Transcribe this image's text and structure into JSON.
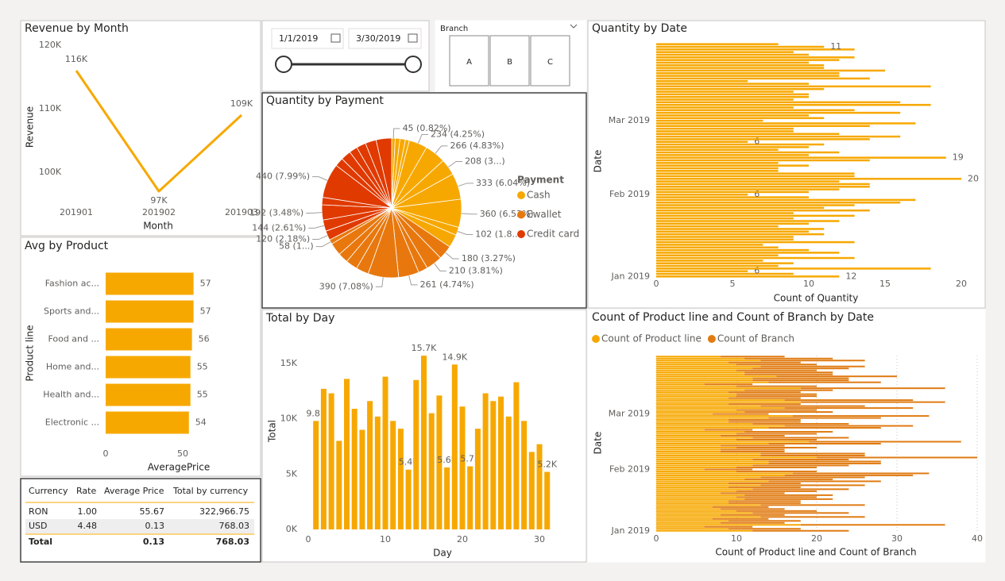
{
  "chart_data": [
    {
      "type": "line",
      "title": "Revenue by Month",
      "categories": [
        "201901",
        "201902",
        "201903"
      ],
      "values": [
        116000,
        97000,
        109000
      ],
      "value_labels": [
        "116K",
        "97K",
        "109K"
      ],
      "color": "#F7A800",
      "ylim": [
        95000,
        121000
      ],
      "yticks": [
        {
          "value": 100000,
          "label": "100K"
        },
        {
          "value": 110000,
          "label": "110K"
        },
        {
          "value": 120000,
          "label": "120K"
        }
      ],
      "xlabel": "Month",
      "ylabel": "Revenue"
    },
    {
      "type": "bar",
      "horizontal": true,
      "title": "Avg by Product",
      "categories": [
        "Fashion ac...",
        "Sports and...",
        "Food and ...",
        "Home and...",
        "Health and...",
        "Electronic ..."
      ],
      "values": [
        57,
        57,
        56,
        55,
        55,
        54
      ],
      "color": "#F7A800",
      "xlim": [
        0,
        60
      ],
      "xticks": [
        0,
        50
      ],
      "data_labels": true,
      "xlabel": "AveragePrice",
      "ylabel": "Product line"
    },
    {
      "type": "pie",
      "title": "Quantity by Payment",
      "legend_title": "Payment",
      "series": [
        {
          "name": "Cash",
          "color": "#F7A800",
          "values": [
            45,
            60,
            70,
            50,
            234,
            266,
            208,
            333,
            360,
            102,
            168
          ],
          "value_labels": [
            "45 (0.82%)",
            null,
            null,
            null,
            "234 (4.25%)",
            "266 (4.83%)",
            "208 (3...)",
            "333 (6.04%)",
            "360 (6.53%)",
            "102 (1.8...)",
            null
          ]
        },
        {
          "name": "Ewallet",
          "color": "#E8780E",
          "values": [
            180,
            210,
            120,
            261,
            390,
            160,
            150,
            130,
            161,
            58
          ],
          "value_labels": [
            "180 (3.27%)",
            "210 (3.81%)",
            null,
            "261 (4.74%)",
            "390 (7.08%)",
            null,
            null,
            null,
            null,
            "58 (1...)"
          ]
        },
        {
          "name": "Credit card",
          "color": "#E03A00",
          "values": [
            120,
            144,
            192,
            95,
            440,
            110,
            130,
            105,
            120,
            140,
            198
          ],
          "value_labels": [
            "120 (2.18%)",
            "144 (2.61%)",
            "192 (3.48%)",
            null,
            "440 (7.99%)",
            null,
            null,
            null,
            null,
            null,
            null
          ]
        }
      ]
    },
    {
      "type": "bar",
      "title": "Total by Day",
      "x": [
        1,
        2,
        3,
        4,
        5,
        6,
        7,
        8,
        9,
        10,
        11,
        12,
        13,
        14,
        15,
        16,
        17,
        18,
        19,
        20,
        21,
        22,
        23,
        24,
        25,
        26,
        27,
        28,
        29,
        30,
        31
      ],
      "values": [
        9800,
        12700,
        12300,
        8000,
        13600,
        10900,
        9000,
        11600,
        10200,
        13800,
        9800,
        9100,
        5400,
        13500,
        15700,
        10500,
        12100,
        5600,
        14900,
        11100,
        5700,
        9100,
        12300,
        11600,
        12000,
        10200,
        13300,
        9800,
        7000,
        7700,
        5200
      ],
      "value_labels": [
        "9.8K",
        null,
        null,
        null,
        null,
        null,
        null,
        null,
        null,
        null,
        null,
        null,
        "5.4K",
        null,
        "15.7K",
        null,
        null,
        "5.6K",
        "14.9K",
        null,
        "5.7K",
        null,
        null,
        null,
        null,
        null,
        null,
        null,
        null,
        null,
        "5.2K"
      ],
      "color": "#F7A800",
      "xlim": [
        0,
        32
      ],
      "xticks": [
        0,
        10,
        20,
        30
      ],
      "ylim": [
        0,
        17500
      ],
      "yticks": [
        {
          "value": 0,
          "label": "0K"
        },
        {
          "value": 5000,
          "label": "5K"
        },
        {
          "value": 10000,
          "label": "10K"
        },
        {
          "value": 15000,
          "label": "15K"
        }
      ],
      "xlabel": "Day",
      "ylabel": "Total"
    },
    {
      "type": "bar",
      "horizontal": true,
      "title": "Quantity by Date",
      "categories": [
        "Jan 2019",
        null,
        null,
        null,
        null,
        null,
        null,
        null,
        null,
        null,
        null,
        null,
        null,
        null,
        null,
        null,
        null,
        null,
        null,
        null,
        null,
        null,
        null,
        null,
        null,
        null,
        null,
        null,
        null,
        null,
        null,
        "Feb 2019",
        null,
        null,
        null,
        null,
        null,
        null,
        null,
        null,
        null,
        null,
        null,
        null,
        null,
        null,
        null,
        null,
        null,
        null,
        null,
        null,
        null,
        null,
        null,
        null,
        null,
        null,
        null,
        "Mar 2019",
        null,
        null,
        null,
        null,
        null,
        null,
        null,
        null,
        null,
        null,
        null,
        null,
        null,
        null,
        null,
        null,
        null,
        null,
        null,
        null,
        null,
        null,
        null,
        null,
        null,
        null,
        null,
        null,
        null
      ],
      "values": [
        12,
        9,
        6,
        18,
        8,
        9,
        7,
        13,
        8,
        12,
        10,
        8,
        7,
        13,
        9,
        9,
        11,
        10,
        11,
        8,
        10,
        12,
        9,
        13,
        9,
        14,
        11,
        13,
        16,
        17,
        10,
        6,
        10,
        12,
        14,
        14,
        12,
        20,
        13,
        13,
        8,
        8,
        10,
        8,
        14,
        19,
        10,
        12,
        8,
        10,
        11,
        6,
        14,
        16,
        12,
        9,
        9,
        14,
        17,
        7,
        11,
        10,
        16,
        13,
        9,
        18,
        16,
        9,
        10,
        10,
        9,
        11,
        18,
        10,
        6,
        14,
        12,
        12,
        15,
        11,
        11,
        10,
        12,
        13,
        10,
        9,
        13,
        11,
        8
      ],
      "value_labels": [
        "12",
        null,
        "6",
        null,
        null,
        null,
        null,
        null,
        null,
        null,
        null,
        null,
        null,
        null,
        null,
        null,
        null,
        null,
        null,
        null,
        null,
        null,
        null,
        null,
        null,
        null,
        null,
        null,
        null,
        null,
        null,
        "6",
        null,
        null,
        null,
        null,
        null,
        "20",
        null,
        null,
        null,
        null,
        null,
        null,
        null,
        "19",
        null,
        null,
        null,
        null,
        null,
        "6",
        null,
        null,
        null,
        null,
        null,
        null,
        null,
        null,
        null,
        null,
        null,
        null,
        null,
        null,
        null,
        null,
        null,
        null,
        null,
        null,
        null,
        null,
        null,
        null,
        null,
        null,
        null,
        null,
        null,
        null,
        null,
        null,
        null,
        null,
        null,
        "11",
        null
      ],
      "color": "#F7A800",
      "xlim": [
        0,
        21
      ],
      "xticks": [
        0,
        5,
        10,
        15,
        20
      ],
      "xlabel": "Count of Quantity",
      "ylabel": "Date"
    },
    {
      "type": "bar",
      "horizontal": true,
      "stacked": true,
      "title": "Count of Product line and Count of Branch by Date",
      "categories": [
        "Jan 2019",
        null,
        null,
        null,
        null,
        null,
        null,
        null,
        null,
        null,
        null,
        null,
        null,
        null,
        null,
        null,
        null,
        null,
        null,
        null,
        null,
        null,
        null,
        null,
        null,
        null,
        null,
        null,
        null,
        null,
        null,
        "Feb 2019",
        null,
        null,
        null,
        null,
        null,
        null,
        null,
        null,
        null,
        null,
        null,
        null,
        null,
        null,
        null,
        null,
        null,
        null,
        null,
        null,
        null,
        null,
        null,
        null,
        null,
        null,
        null,
        "Mar 2019",
        null,
        null,
        null,
        null,
        null,
        null,
        null,
        null,
        null,
        null,
        null,
        null,
        null,
        null,
        null,
        null,
        null,
        null,
        null,
        null,
        null,
        null,
        null,
        null,
        null,
        null,
        null,
        null,
        null
      ],
      "series": [
        {
          "name": "Count of Product line",
          "color": "#F7A800",
          "values": [
            12,
            9,
            6,
            18,
            8,
            9,
            7,
            13,
            8,
            12,
            10,
            8,
            7,
            13,
            9,
            9,
            11,
            10,
            11,
            8,
            10,
            12,
            9,
            13,
            9,
            14,
            11,
            13,
            16,
            17,
            10,
            6,
            10,
            12,
            14,
            14,
            12,
            20,
            13,
            13,
            8,
            8,
            10,
            8,
            14,
            19,
            10,
            12,
            8,
            10,
            11,
            6,
            14,
            16,
            12,
            9,
            9,
            14,
            17,
            7,
            11,
            10,
            16,
            13,
            9,
            18,
            16,
            9,
            10,
            10,
            9,
            11,
            18,
            10,
            6,
            14,
            12,
            12,
            15,
            11,
            11,
            10,
            12,
            13,
            10,
            9,
            13,
            11,
            8
          ]
        },
        {
          "name": "Count of Branch",
          "color": "#E07B12",
          "values": [
            12,
            9,
            6,
            18,
            8,
            9,
            7,
            13,
            8,
            12,
            10,
            8,
            7,
            13,
            9,
            9,
            11,
            10,
            11,
            8,
            10,
            12,
            9,
            13,
            9,
            14,
            11,
            13,
            16,
            17,
            10,
            6,
            10,
            12,
            14,
            14,
            12,
            20,
            13,
            13,
            8,
            8,
            10,
            8,
            14,
            19,
            10,
            12,
            8,
            10,
            11,
            6,
            14,
            16,
            12,
            9,
            9,
            14,
            17,
            7,
            11,
            10,
            16,
            13,
            9,
            18,
            16,
            9,
            10,
            10,
            9,
            11,
            18,
            10,
            6,
            14,
            12,
            12,
            15,
            11,
            11,
            10,
            12,
            13,
            10,
            9,
            13,
            11,
            8
          ]
        }
      ],
      "xlim": [
        0,
        40
      ],
      "xticks": [
        0,
        10,
        20,
        30,
        40
      ],
      "grid": true,
      "legend": "top-left",
      "xlabel": "Count of Product line and Count of Branch",
      "ylabel": "Date"
    }
  ],
  "date_slicer": {
    "start": "1/1/2019",
    "end": "3/30/2019"
  },
  "branch_slicer": {
    "title": "Branch",
    "options": [
      "A",
      "B",
      "C"
    ]
  },
  "table": {
    "columns": [
      "Currency",
      "Rate",
      "Average Price",
      "Total by currency"
    ],
    "rows": [
      [
        "RON",
        "1.00",
        "55.67",
        "322,966.75"
      ],
      [
        "USD",
        "4.48",
        "0.13",
        "768.03"
      ]
    ],
    "total": {
      "label": "Total",
      "average_price": "0.13",
      "total_by_currency": "768.03"
    }
  }
}
